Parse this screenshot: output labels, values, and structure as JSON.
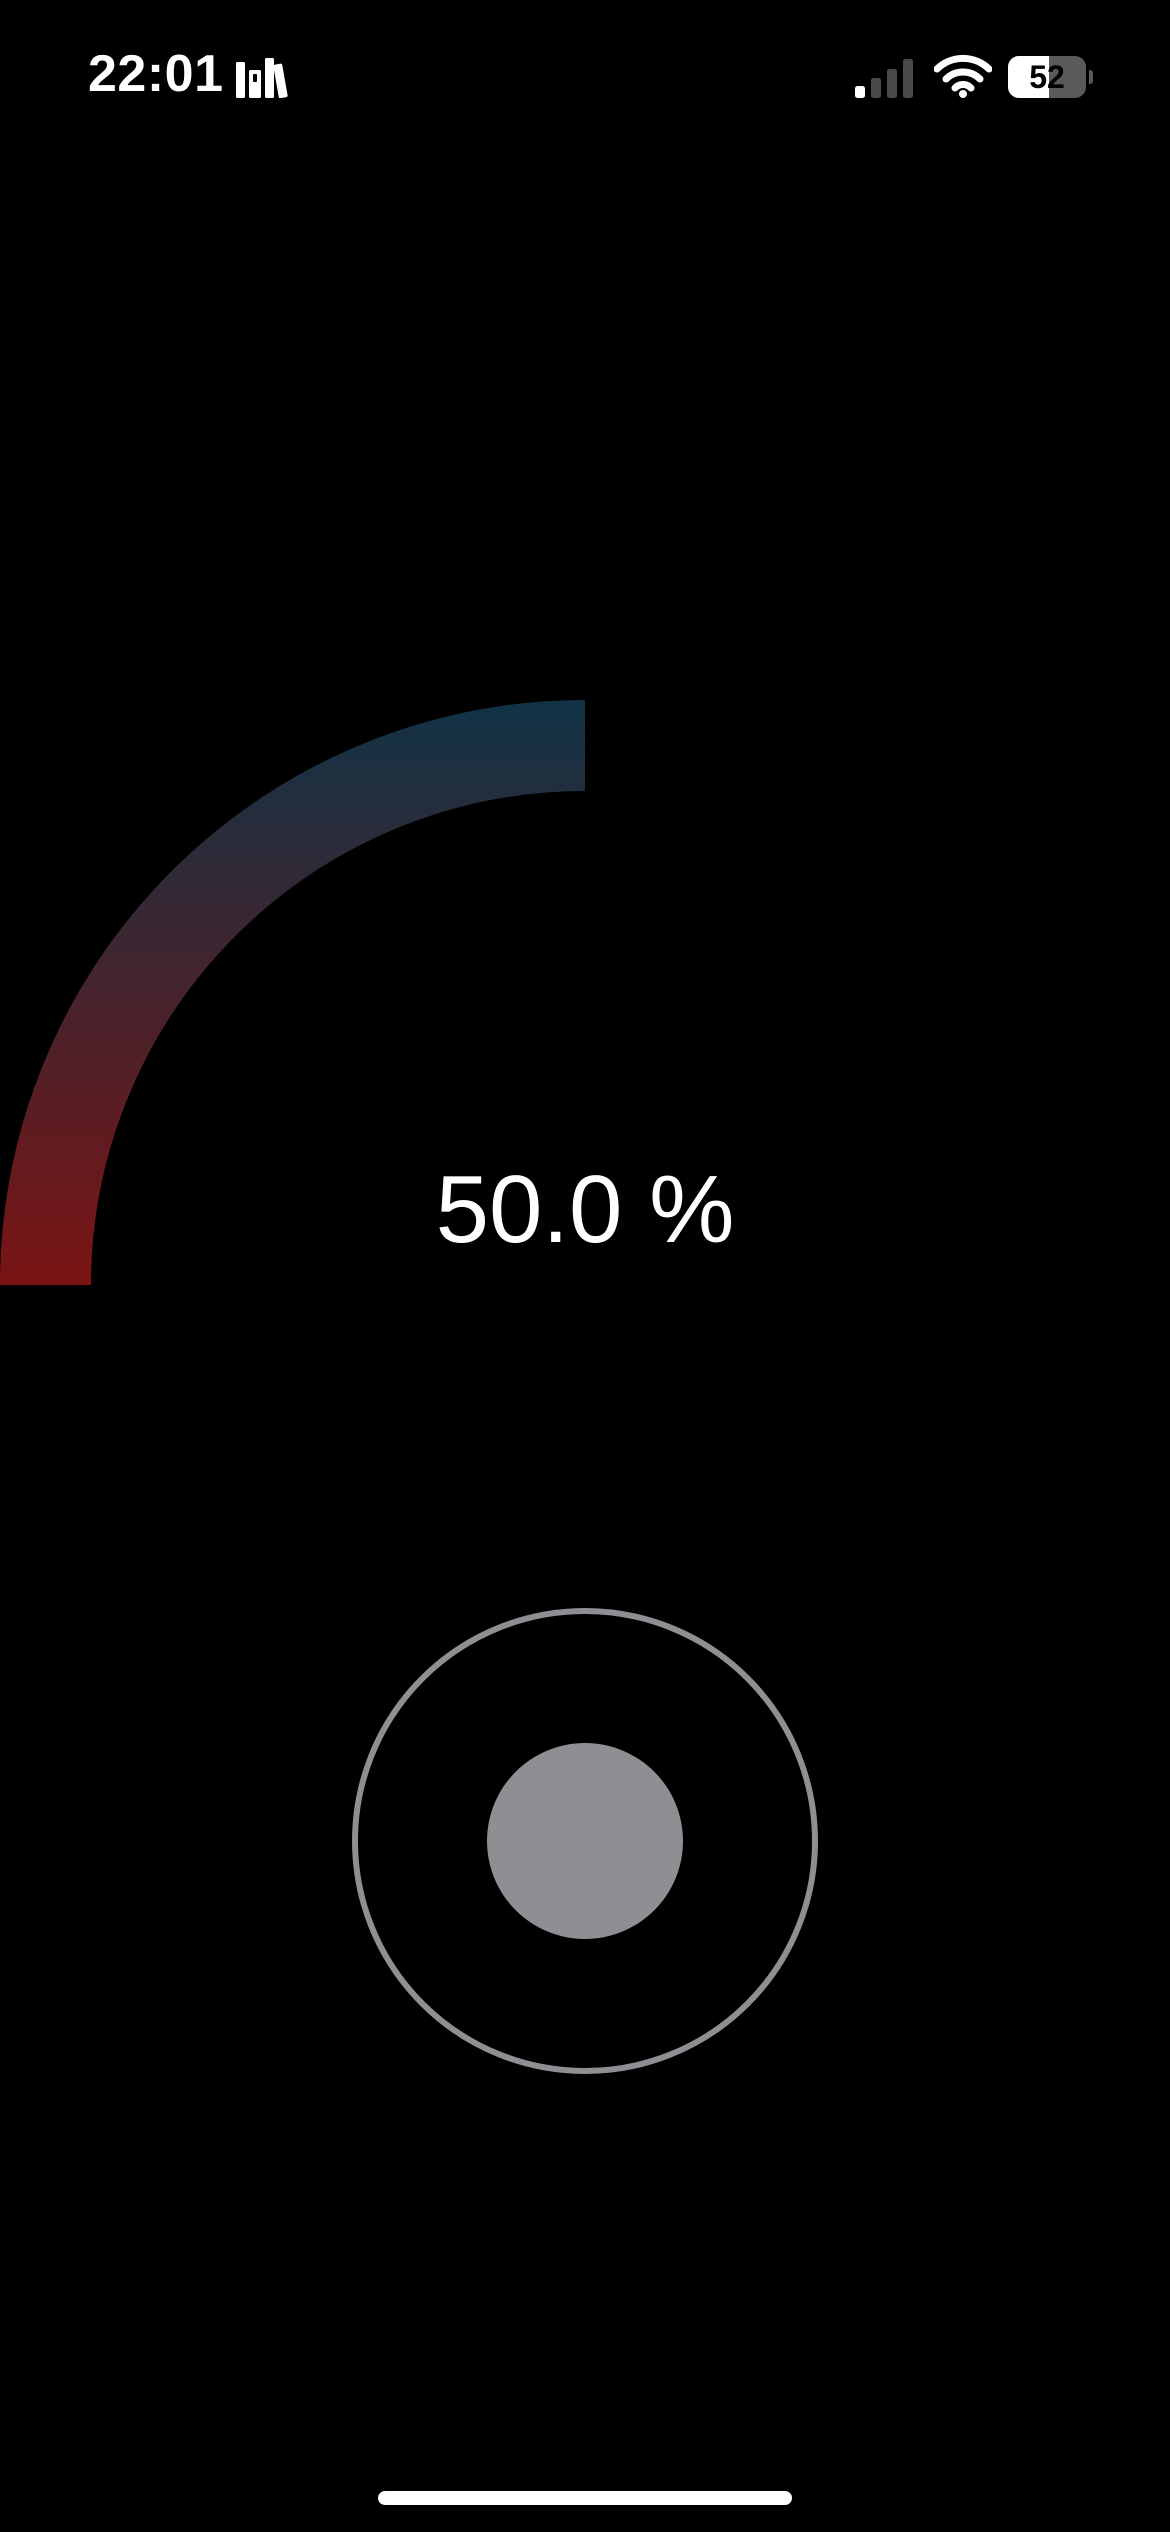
{
  "status_bar": {
    "time": "22:01",
    "battery_level": "52",
    "battery_fraction": 0.52,
    "signal_bars_active": 1,
    "signal_bars_total": 4,
    "icons": [
      "library-icon",
      "signal-icon",
      "wifi-icon",
      "battery-icon"
    ]
  },
  "gauge": {
    "value_label": "50.0 %",
    "value_fraction": 0.5,
    "gradient_start_color": "#7a1414",
    "gradient_end_color": "#113346"
  },
  "control": {
    "ring_color": "#8e8e93",
    "knob_color": "#8e8e93"
  },
  "colors": {
    "background": "#000000",
    "text": "#ffffff"
  }
}
